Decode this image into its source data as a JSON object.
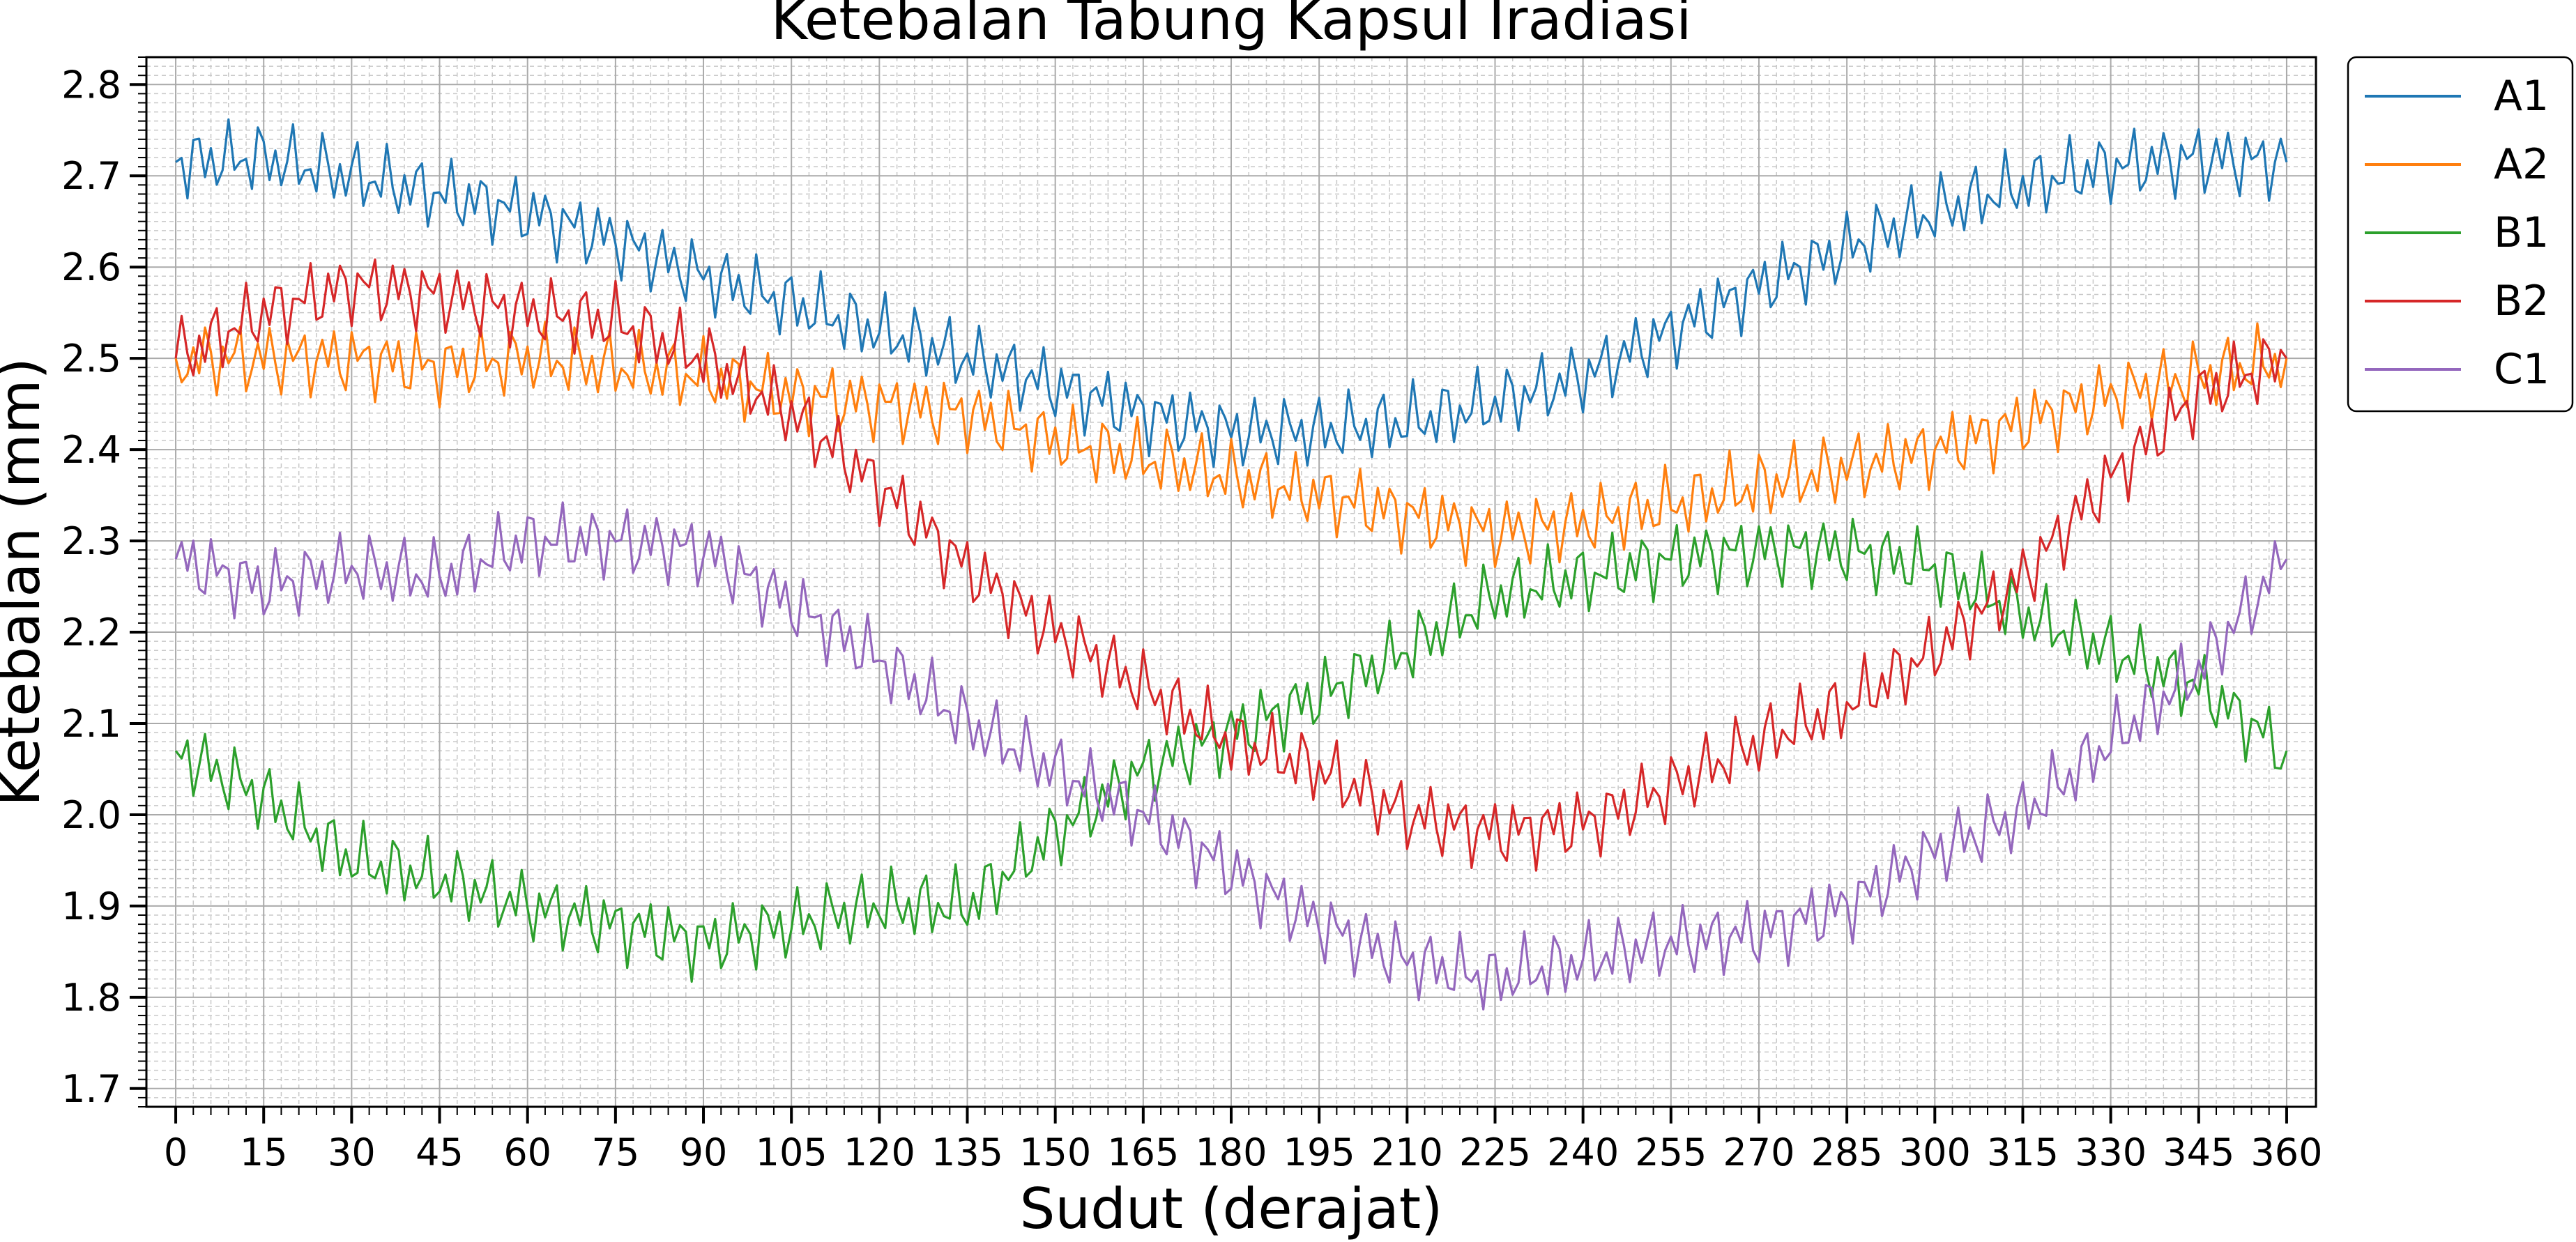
{
  "chart_data": {
    "type": "line",
    "title": "Ketebalan Tabung Kapsul Iradiasi",
    "xlabel": "Sudut (derajat)",
    "ylabel": "Ketebalan (mm)",
    "xlim": [
      -5,
      365
    ],
    "ylim": [
      1.68,
      2.83
    ],
    "x_ticks": [
      0,
      15,
      30,
      45,
      60,
      75,
      90,
      105,
      120,
      135,
      150,
      165,
      180,
      195,
      210,
      225,
      240,
      255,
      270,
      285,
      300,
      315,
      330,
      345,
      360
    ],
    "x_tick_labels": [
      "0",
      "15",
      "30",
      "45",
      "60",
      "75",
      "90",
      "105",
      "120",
      "135",
      "150",
      "165",
      "180",
      "195",
      "210",
      "225",
      "240",
      "255",
      "270",
      "285",
      "300",
      "315",
      "330",
      "345",
      "360"
    ],
    "y_ticks": [
      1.7,
      1.8,
      1.9,
      2.0,
      2.1,
      2.2,
      2.3,
      2.4,
      2.5,
      2.6,
      2.7,
      2.8
    ],
    "y_tick_labels": [
      "1.7",
      "1.8",
      "1.9",
      "2.0",
      "2.1",
      "2.2",
      "2.3",
      "2.4",
      "2.5",
      "2.6",
      "2.7",
      "2.8"
    ],
    "grid": true,
    "legend_position": "outside upper right",
    "x": [
      0,
      15,
      30,
      45,
      60,
      75,
      90,
      105,
      120,
      135,
      150,
      165,
      180,
      195,
      210,
      225,
      240,
      255,
      270,
      285,
      300,
      315,
      330,
      345,
      360
    ],
    "series": [
      {
        "name": "A1",
        "color": "#1f77b4",
        "values": [
          2.715,
          2.72,
          2.7,
          2.68,
          2.66,
          2.63,
          2.59,
          2.56,
          2.53,
          2.5,
          2.47,
          2.44,
          2.42,
          2.42,
          2.43,
          2.45,
          2.48,
          2.53,
          2.58,
          2.62,
          2.66,
          2.69,
          2.71,
          2.72,
          2.715
        ]
      },
      {
        "name": "A2",
        "color": "#ff7f0e",
        "values": [
          2.5,
          2.5,
          2.5,
          2.49,
          2.5,
          2.49,
          2.48,
          2.46,
          2.45,
          2.44,
          2.41,
          2.39,
          2.37,
          2.35,
          2.33,
          2.31,
          2.32,
          2.34,
          2.36,
          2.38,
          2.4,
          2.43,
          2.46,
          2.48,
          2.5
        ]
      },
      {
        "name": "B1",
        "color": "#2ca02c",
        "values": [
          2.07,
          2.02,
          1.95,
          1.93,
          1.9,
          1.88,
          1.86,
          1.88,
          1.9,
          1.9,
          1.98,
          2.05,
          2.09,
          2.13,
          2.18,
          2.24,
          2.26,
          2.28,
          2.29,
          2.29,
          2.27,
          2.22,
          2.18,
          2.14,
          2.07
        ]
      },
      {
        "name": "B2",
        "color": "#d62728",
        "values": [
          2.5,
          2.55,
          2.58,
          2.57,
          2.55,
          2.54,
          2.5,
          2.44,
          2.36,
          2.27,
          2.2,
          2.14,
          2.08,
          2.05,
          2.0,
          1.98,
          1.99,
          2.03,
          2.08,
          2.12,
          2.18,
          2.26,
          2.37,
          2.46,
          2.5
        ]
      },
      {
        "name": "C1",
        "color": "#9467bd",
        "values": [
          2.28,
          2.25,
          2.27,
          2.26,
          2.3,
          2.3,
          2.29,
          2.23,
          2.17,
          2.1,
          2.05,
          2.0,
          1.94,
          1.88,
          1.84,
          1.82,
          1.84,
          1.86,
          1.87,
          1.9,
          1.96,
          2.0,
          2.08,
          2.16,
          2.28
        ]
      }
    ]
  }
}
